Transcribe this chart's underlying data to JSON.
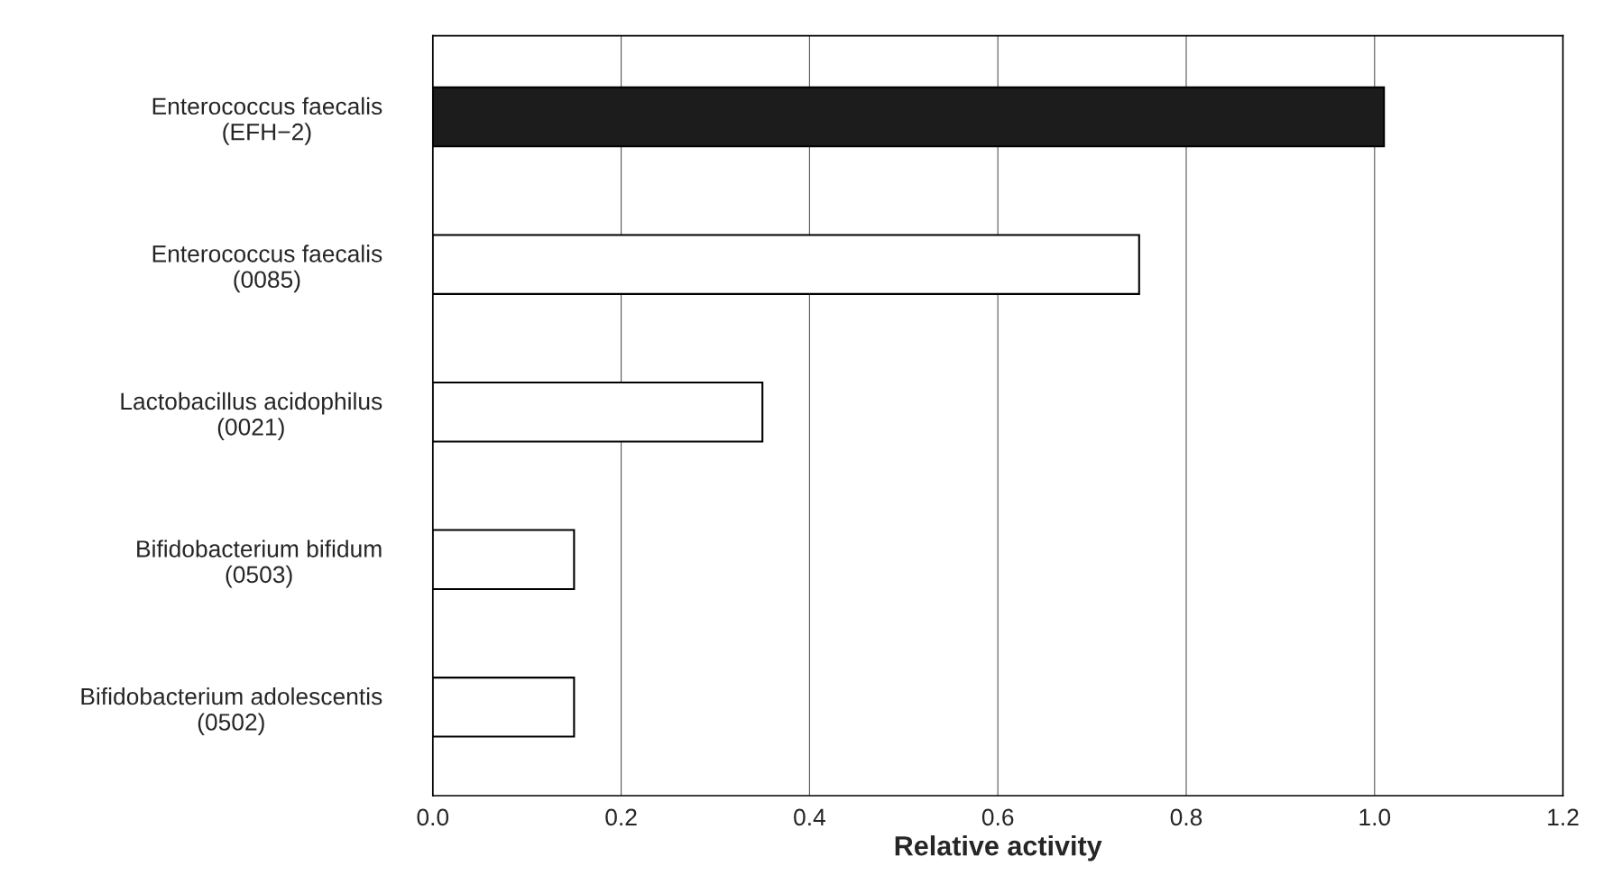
{
  "chart_data": {
    "type": "bar",
    "orientation": "horizontal",
    "xlabel": "Relative activity",
    "categories": [
      "Enterococcus faecalis\n(EFH−2)",
      "Enterococcus faecalis\n(0085)",
      "Lactobacillus acidophilus\n(0021)",
      "Bifidobacterium bifidum\n(0503)",
      "Bifidobacterium adolescentis\n(0502)"
    ],
    "values": [
      1.01,
      0.75,
      0.35,
      0.15,
      0.15
    ],
    "colors": [
      "#1c1c1c",
      "#ffffff",
      "#ffffff",
      "#ffffff",
      "#ffffff"
    ],
    "xlim": [
      0,
      1.2
    ],
    "xticks": [
      {
        "value": 0,
        "label": "0.0"
      },
      0.2,
      0.4,
      0.6,
      0.8,
      {
        "value": 1,
        "label": "1.0"
      },
      1.2
    ],
    "grid": "x"
  }
}
